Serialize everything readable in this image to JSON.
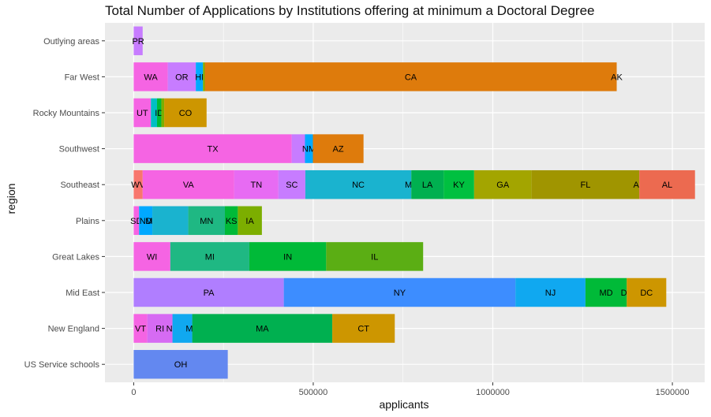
{
  "chart_data": {
    "type": "bar",
    "orientation": "horizontal",
    "stacked": true,
    "title": "Total Number of Applications by Institutions offering at minimum a Doctoral Degree",
    "xlabel": "applicants",
    "ylabel": "region",
    "xlim": [
      -80000,
      1590000
    ],
    "xticks": [
      0,
      500000,
      1000000,
      1500000
    ],
    "xtick_labels": [
      "0",
      "500000",
      "1000000",
      "1500000"
    ],
    "grid": true,
    "legend": "none",
    "categories": [
      "Outlying areas",
      "Far West",
      "Rocky Mountains",
      "Southwest",
      "Southeast",
      "Plains",
      "Great Lakes",
      "Mid East",
      "New England",
      "US Service schools"
    ],
    "bars": [
      {
        "region": "Outlying areas",
        "segments": [
          {
            "label": "PR",
            "value": 25000,
            "color": "#C77CFF"
          }
        ]
      },
      {
        "region": "Far West",
        "segments": [
          {
            "label": "WA",
            "value": 95000,
            "color": "#F564E3"
          },
          {
            "label": "OR",
            "value": 78000,
            "color": "#C77CFF"
          },
          {
            "label": "HI",
            "value": 20000,
            "color": "#00A9FF"
          },
          {
            "label": "",
            "value": 5000,
            "color": "#7CAE00"
          },
          {
            "label": "CA",
            "value": 1147000,
            "color": "#DE7B0C"
          },
          {
            "label": "AK",
            "value": 0,
            "color": "#F8766D"
          }
        ]
      },
      {
        "region": "Rocky Mountains",
        "segments": [
          {
            "label": "UT",
            "value": 48000,
            "color": "#F564E3"
          },
          {
            "label": "",
            "value": 17000,
            "color": "#00BFC4"
          },
          {
            "label": "ID",
            "value": 12000,
            "color": "#00BA38"
          },
          {
            "label": "",
            "value": 8000,
            "color": "#7CAE00"
          },
          {
            "label": "CO",
            "value": 118000,
            "color": "#CD9600"
          }
        ]
      },
      {
        "region": "Southwest",
        "segments": [
          {
            "label": "TX",
            "value": 440000,
            "color": "#F564E3"
          },
          {
            "label": "",
            "value": 37000,
            "color": "#C77CFF"
          },
          {
            "label": "NM",
            "value": 22000,
            "color": "#00A9FF"
          },
          {
            "label": "AZ",
            "value": 141000,
            "color": "#DE7B0C"
          }
        ]
      },
      {
        "region": "Southeast",
        "segments": [
          {
            "label": "WV",
            "value": 25000,
            "color": "#F8766D"
          },
          {
            "label": "VA",
            "value": 255000,
            "color": "#F564E3"
          },
          {
            "label": "TN",
            "value": 123000,
            "color": "#E76BF3"
          },
          {
            "label": "SC",
            "value": 75000,
            "color": "#C77CFF"
          },
          {
            "label": "NC",
            "value": 295000,
            "color": "#1AB3CF"
          },
          {
            "label": "MS",
            "value": 0,
            "color": "#00BF7D"
          },
          {
            "label": "LA",
            "value": 90000,
            "color": "#00B050"
          },
          {
            "label": "KY",
            "value": 85000,
            "color": "#00C040"
          },
          {
            "label": "GA",
            "value": 160000,
            "color": "#A3A500"
          },
          {
            "label": "FL",
            "value": 300000,
            "color": "#A09500"
          },
          {
            "label": "AR",
            "value": 0,
            "color": "#E76042"
          },
          {
            "label": "AL",
            "value": 155000,
            "color": "#EC6A50"
          }
        ]
      },
      {
        "region": "Plains",
        "segments": [
          {
            "label": "SD",
            "value": 15000,
            "color": "#F564E3"
          },
          {
            "label": "ND",
            "value": 37000,
            "color": "#00A9FF"
          },
          {
            "label": "MO",
            "value": 0,
            "color": "#00BFC4"
          },
          {
            "label": "",
            "value": 100000,
            "color": "#1AB3CF"
          },
          {
            "label": "MN",
            "value": 102000,
            "color": "#1FB883"
          },
          {
            "label": "KS",
            "value": 36000,
            "color": "#00BA38"
          },
          {
            "label": "IA",
            "value": 67000,
            "color": "#7CAE00"
          }
        ]
      },
      {
        "region": "Great Lakes",
        "segments": [
          {
            "label": "WI",
            "value": 102000,
            "color": "#F564E3"
          },
          {
            "label": "MI",
            "value": 220000,
            "color": "#1FB883"
          },
          {
            "label": "IN",
            "value": 214000,
            "color": "#00BA38"
          },
          {
            "label": "IL",
            "value": 270000,
            "color": "#5BAE14"
          }
        ]
      },
      {
        "region": "Mid East",
        "segments": [
          {
            "label": "PA",
            "value": 418000,
            "color": "#B07EFF"
          },
          {
            "label": "NY",
            "value": 645000,
            "color": "#3D8DFF"
          },
          {
            "label": "NJ",
            "value": 195000,
            "color": "#10A8F0"
          },
          {
            "label": "MD",
            "value": 115000,
            "color": "#00BA38"
          },
          {
            "label": "DE",
            "value": 0,
            "color": "#A3A500"
          },
          {
            "label": "DC",
            "value": 110000,
            "color": "#CD9600"
          }
        ]
      },
      {
        "region": "New England",
        "segments": [
          {
            "label": "VT",
            "value": 38000,
            "color": "#F564E3"
          },
          {
            "label": "RI",
            "value": 70000,
            "color": "#D66BF3"
          },
          {
            "label": "NH",
            "value": 0,
            "color": "#C77CFF"
          },
          {
            "label": "",
            "value": 55000,
            "color": "#10A8F0"
          },
          {
            "label": "ME",
            "value": 0,
            "color": "#00BFC4"
          },
          {
            "label": "MA",
            "value": 390000,
            "color": "#00B050"
          },
          {
            "label": "CT",
            "value": 174000,
            "color": "#CD9600"
          }
        ]
      },
      {
        "region": "US Service schools",
        "segments": [
          {
            "label": "OH",
            "value": 262000,
            "color": "#6388F0"
          }
        ]
      }
    ],
    "colors": {
      "panel_background": "#EBEBEB",
      "grid": "#FFFFFF",
      "axis_text": "#4D4D4D"
    }
  }
}
